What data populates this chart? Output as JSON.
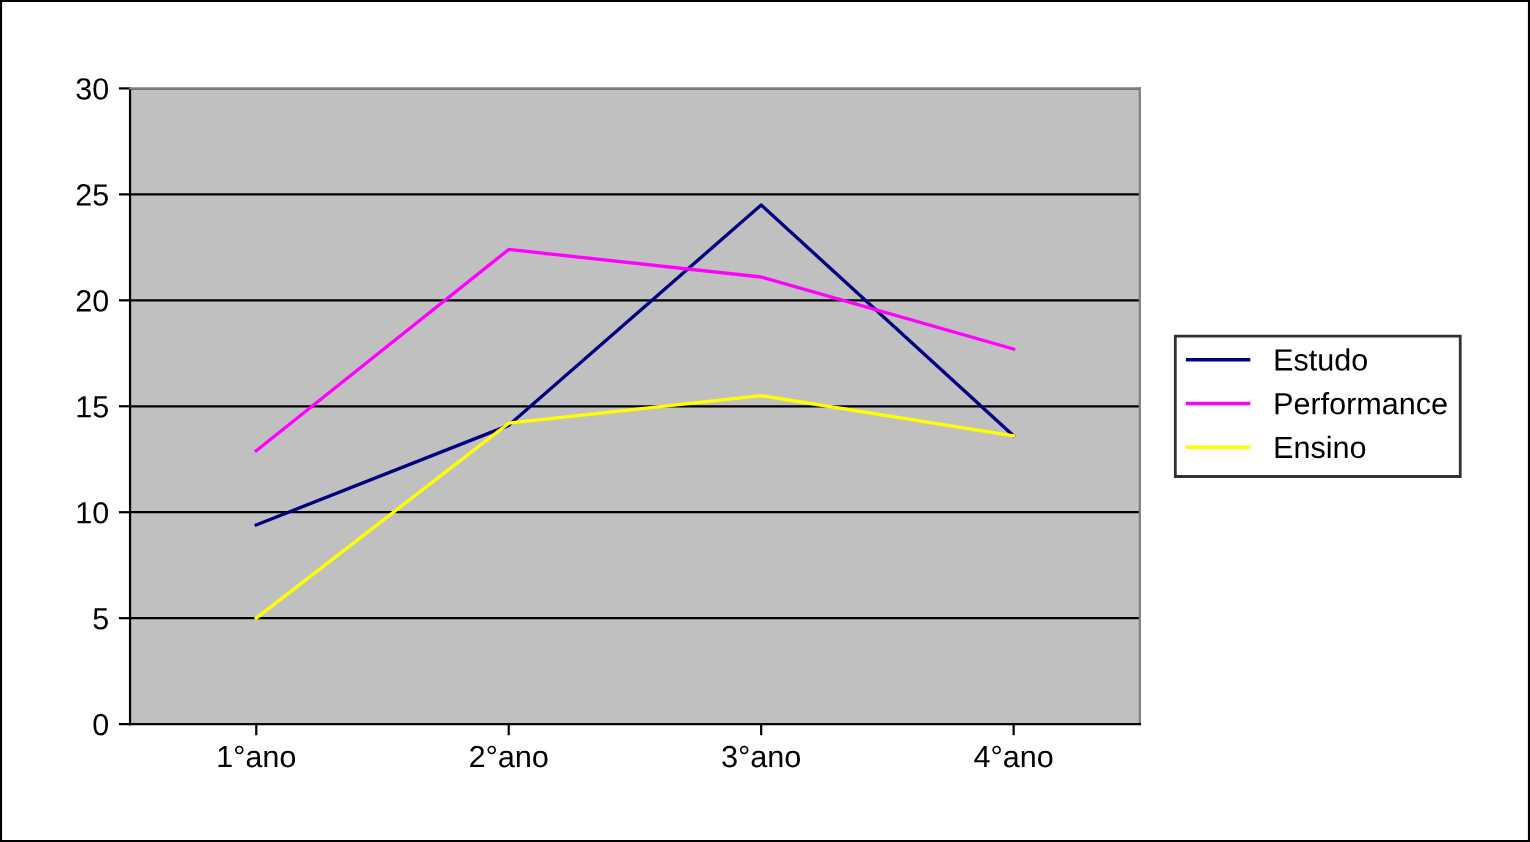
{
  "chart_data": {
    "type": "line",
    "categories": [
      "1°ano",
      "2°ano",
      "3°ano",
      "4°ano"
    ],
    "series": [
      {
        "name": "Estudo",
        "color": "#000080",
        "values": [
          9.4,
          14.1,
          24.5,
          13.6
        ]
      },
      {
        "name": "Performance",
        "color": "#ff00ff",
        "values": [
          12.9,
          22.4,
          21.1,
          17.7
        ]
      },
      {
        "name": "Ensino",
        "color": "#ffff00",
        "values": [
          5.0,
          14.2,
          15.5,
          13.6
        ]
      }
    ],
    "ylim": [
      0,
      30
    ],
    "yticks": [
      0,
      5,
      10,
      15,
      20,
      25,
      30
    ],
    "grid": "y",
    "legend": "right",
    "marker": "none",
    "line_style": "solid"
  }
}
